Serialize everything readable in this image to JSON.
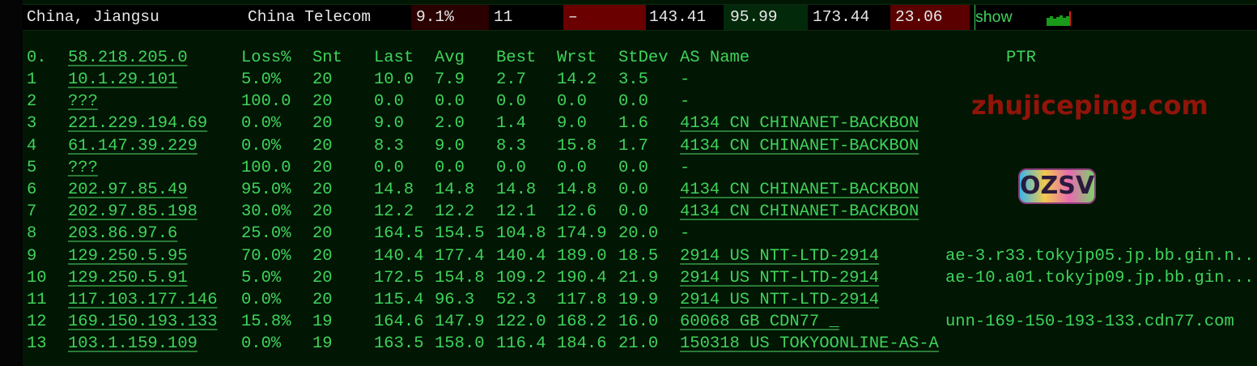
{
  "summary": {
    "location": "China, Jiangsu",
    "provider": "China Telecom",
    "loss": "9.1%",
    "hops": "11",
    "last": "–",
    "avg": "143.41",
    "best": "95.99",
    "worst": "173.44",
    "stdev": "23.06",
    "action": "show",
    "colors": {
      "loss_bg": "#2a0000",
      "last_bg": "#6a0000",
      "best_bg": "#022a0a",
      "stdev_bg": "#5a0000",
      "spark": "#1a9a1a",
      "spark_marker": "#e02020"
    }
  },
  "table": {
    "headers": {
      "hop": "0.",
      "host": "58.218.205.0",
      "loss": "Loss%",
      "snt": "Snt",
      "last": "Last",
      "avg": "Avg",
      "best": "Best",
      "wrst": "Wrst",
      "stdev": "StDev",
      "as": "AS Name",
      "ptr": "PTR"
    },
    "rows": [
      {
        "hop": "1",
        "host": "10.1.29.101",
        "loss": "5.0%",
        "snt": "20",
        "last": "10.0",
        "avg": "7.9",
        "best": "2.7",
        "wrst": "14.2",
        "stdev": "3.5",
        "as": "-",
        "ptr": ""
      },
      {
        "hop": "2",
        "host": "???",
        "loss": "100.0",
        "snt": "20",
        "last": "0.0",
        "avg": "0.0",
        "best": "0.0",
        "wrst": "0.0",
        "stdev": "0.0",
        "as": "-",
        "ptr": ""
      },
      {
        "hop": "3",
        "host": "221.229.194.69",
        "loss": "0.0%",
        "snt": "20",
        "last": "9.0",
        "avg": "2.0",
        "best": "1.4",
        "wrst": "9.0",
        "stdev": "1.6",
        "as": "4134  CN CHINANET-BACKBON",
        "ptr": ""
      },
      {
        "hop": "4",
        "host": "61.147.39.229",
        "loss": "0.0%",
        "snt": "20",
        "last": "8.3",
        "avg": "9.0",
        "best": "8.3",
        "wrst": "15.8",
        "stdev": "1.7",
        "as": "4134  CN CHINANET-BACKBON",
        "ptr": ""
      },
      {
        "hop": "5",
        "host": "???",
        "loss": "100.0",
        "snt": "20",
        "last": "0.0",
        "avg": "0.0",
        "best": "0.0",
        "wrst": "0.0",
        "stdev": "0.0",
        "as": "-",
        "ptr": ""
      },
      {
        "hop": "6",
        "host": "202.97.85.49",
        "loss": "95.0%",
        "snt": "20",
        "last": "14.8",
        "avg": "14.8",
        "best": "14.8",
        "wrst": "14.8",
        "stdev": "0.0",
        "as": "4134  CN CHINANET-BACKBON",
        "ptr": ""
      },
      {
        "hop": "7",
        "host": "202.97.85.198",
        "loss": "30.0%",
        "snt": "20",
        "last": "12.2",
        "avg": "12.2",
        "best": "12.1",
        "wrst": "12.6",
        "stdev": "0.0",
        "as": "4134  CN CHINANET-BACKBON",
        "ptr": ""
      },
      {
        "hop": "8",
        "host": "203.86.97.6",
        "loss": "25.0%",
        "snt": "20",
        "last": "164.5",
        "avg": "154.5",
        "best": "104.8",
        "wrst": "174.9",
        "stdev": "20.0",
        "as": "-",
        "ptr": ""
      },
      {
        "hop": "9",
        "host": "129.250.5.95",
        "loss": "70.0%",
        "snt": "20",
        "last": "140.4",
        "avg": "177.4",
        "best": "140.4",
        "wrst": "189.0",
        "stdev": "18.5",
        "as": "2914  US NTT-LTD-2914",
        "ptr": "ae-3.r33.tokyjp05.jp.bb.gin.n.."
      },
      {
        "hop": "10",
        "host": "129.250.5.91",
        "loss": "5.0%",
        "snt": "20",
        "last": "172.5",
        "avg": "154.8",
        "best": "109.2",
        "wrst": "190.4",
        "stdev": "21.9",
        "as": "2914  US NTT-LTD-2914",
        "ptr": "ae-10.a01.tokyjp09.jp.bb.gin..."
      },
      {
        "hop": "11",
        "host": "117.103.177.146",
        "loss": "0.0%",
        "snt": "20",
        "last": "115.4",
        "avg": "96.3",
        "best": "52.3",
        "wrst": "117.8",
        "stdev": "19.9",
        "as": "2914  US NTT-LTD-2914",
        "ptr": ""
      },
      {
        "hop": "12",
        "host": "169.150.193.133",
        "loss": "15.8%",
        "snt": "19",
        "last": "164.6",
        "avg": "147.9",
        "best": "122.0",
        "wrst": "168.2",
        "stdev": "16.0",
        "as": "60068 GB CDN77 _",
        "ptr": "unn-169-150-193-133.cdn77.com"
      },
      {
        "hop": "13",
        "host": "103.1.159.109",
        "loss": "0.0%",
        "snt": "19",
        "last": "163.5",
        "avg": "158.0",
        "best": "116.4",
        "wrst": "184.6",
        "stdev": "21.0",
        "as": "150318 US TOKYOONLINE-AS-A",
        "ptr": ""
      }
    ]
  },
  "watermark": "zhujiceping.com",
  "logo": "OZSV"
}
